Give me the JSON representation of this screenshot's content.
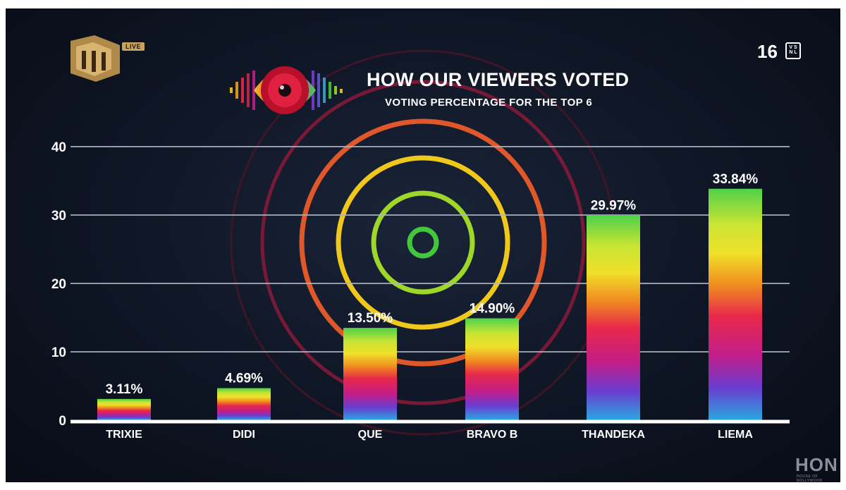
{
  "header": {
    "title": "HOW OUR VIEWERS VOTED",
    "subtitle": "VOTING PERCENTAGE FOR THE TOP 6"
  },
  "channel": {
    "live_label": "LIVE",
    "rating": "16",
    "rating_letters": "V S N L"
  },
  "watermark": {
    "text": "HON",
    "sub": "HOUSE OF NOLLYWOOD"
  },
  "colors": {
    "grid": "#aab3c0",
    "baseline": "#ffffff",
    "label": "#ffffff",
    "bar_gradient": [
      "#4fd14a",
      "#e8e82a",
      "#f07a1e",
      "#e8264a",
      "#c21e8a",
      "#6a3ccf",
      "#2aa8e0"
    ],
    "rings": [
      "#44c73a",
      "#9ed62a",
      "#f0c81c",
      "#f06a22",
      "#d0244a",
      "#9c1c3a"
    ]
  },
  "chart_data": {
    "type": "bar",
    "title": "HOW OUR VIEWERS VOTED",
    "subtitle": "VOTING PERCENTAGE FOR THE TOP 6",
    "categories": [
      "TRIXIE",
      "DIDI",
      "QUE",
      "BRAVO B",
      "THANDEKA",
      "LIEMA"
    ],
    "values": [
      3.11,
      4.69,
      13.5,
      14.9,
      29.97,
      33.84
    ],
    "data_labels": [
      "3.11%",
      "4.69%",
      "13.50%",
      "14.90%",
      "29.97%",
      "33.84%"
    ],
    "y_ticks": [
      "0",
      "10",
      "20",
      "30",
      "40"
    ],
    "ylim": [
      0,
      40
    ],
    "grid": true,
    "xlabel": "",
    "ylabel": ""
  }
}
